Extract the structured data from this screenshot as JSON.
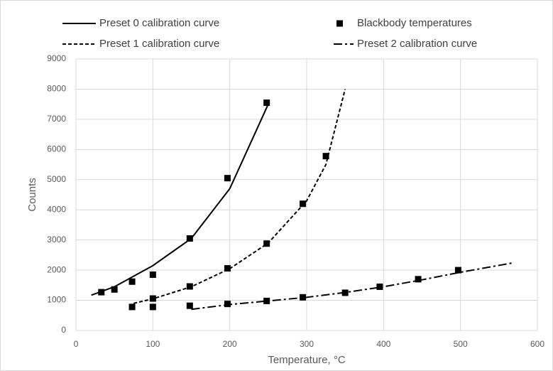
{
  "chart_data": {
    "type": "line",
    "x_label": "Temperature, °C",
    "y_label": "Counts",
    "xlim": [
      0,
      600
    ],
    "xticks": [
      0,
      100,
      200,
      300,
      400,
      500,
      600
    ],
    "ylim": [
      0,
      9000
    ],
    "yticks": [
      0,
      1000,
      2000,
      3000,
      4000,
      5000,
      6000,
      7000,
      8000,
      9000
    ],
    "grid": true,
    "legend": "top",
    "series": [
      {
        "name": "Preset 0 calibration curve",
        "color": "#000000",
        "style": "solid",
        "x": [
          20,
          50,
          100,
          150,
          200,
          250
        ],
        "values": [
          1170,
          1450,
          2150,
          3050,
          4700,
          7500
        ]
      },
      {
        "name": "Blackbody temperatures",
        "color": "#000000",
        "style": "markers",
        "x": [
          33,
          50,
          73,
          100,
          148,
          197,
          248,
          73,
          100,
          100,
          148,
          197,
          248,
          295,
          325,
          148,
          197,
          248,
          295,
          350,
          395,
          445,
          497
        ],
        "values": [
          1270,
          1360,
          1620,
          1850,
          3050,
          5050,
          7550,
          780,
          780,
          1060,
          1460,
          2060,
          2880,
          4200,
          5780,
          820,
          880,
          980,
          1100,
          1250,
          1450,
          1700,
          2000
        ]
      },
      {
        "name": "Preset 1 calibration curve",
        "color": "#000000",
        "style": "dashed",
        "x": [
          75,
          100,
          150,
          200,
          250,
          300,
          325,
          350
        ],
        "values": [
          900,
          1050,
          1450,
          2050,
          2900,
          4300,
          5500,
          8000
        ]
      },
      {
        "name": "Preset 2 calibration curve",
        "color": "#000000",
        "style": "dashdot",
        "x": [
          150,
          200,
          250,
          300,
          350,
          400,
          450,
          500,
          570
        ],
        "values": [
          700,
          860,
          980,
          1100,
          1260,
          1450,
          1680,
          1930,
          2250
        ]
      }
    ]
  }
}
